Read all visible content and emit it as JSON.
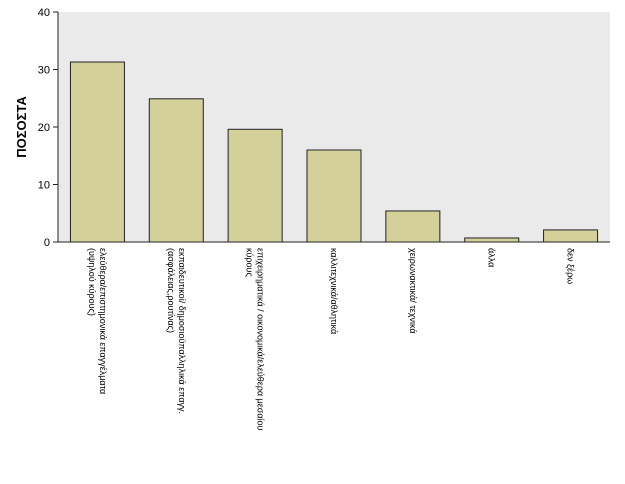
{
  "chart_data": {
    "type": "bar",
    "title": "",
    "xlabel": "",
    "ylabel": "ΠΟΣΟΣΤΑ",
    "ylim": [
      0,
      40
    ],
    "yticks": [
      "0",
      "10",
      "20",
      "30",
      "40"
    ],
    "grid": false,
    "legend": "none",
    "categories": [
      [
        "ελεύθερα/επιστημονικά επαγγέλματα",
        "(υψηλού κύρους)"
      ],
      [
        "εκπαιδευτικοί/ δημοσιοϋπαλληλικά επαγγ.",
        "(ασφάλειας,ρουτίνας)"
      ],
      [
        "επιχειρηματικά / οικονομικά/ελεύθερα μεσαίου",
        "κύρους"
      ],
      [
        "καλλιτεχνικά/αθλητικά"
      ],
      [
        "χειρωνακτικά/ τεχνικά"
      ],
      [
        "άλλα"
      ],
      [
        "δεν ξέρω"
      ]
    ],
    "values": [
      31.3,
      24.9,
      19.6,
      16.0,
      5.4,
      0.7,
      2.1
    ],
    "colors": {
      "bar_fill": "#d4d09a",
      "bar_stroke": "#222222",
      "plot_background": "#eaeaea",
      "axis": "#222222",
      "text": "#000000"
    }
  }
}
